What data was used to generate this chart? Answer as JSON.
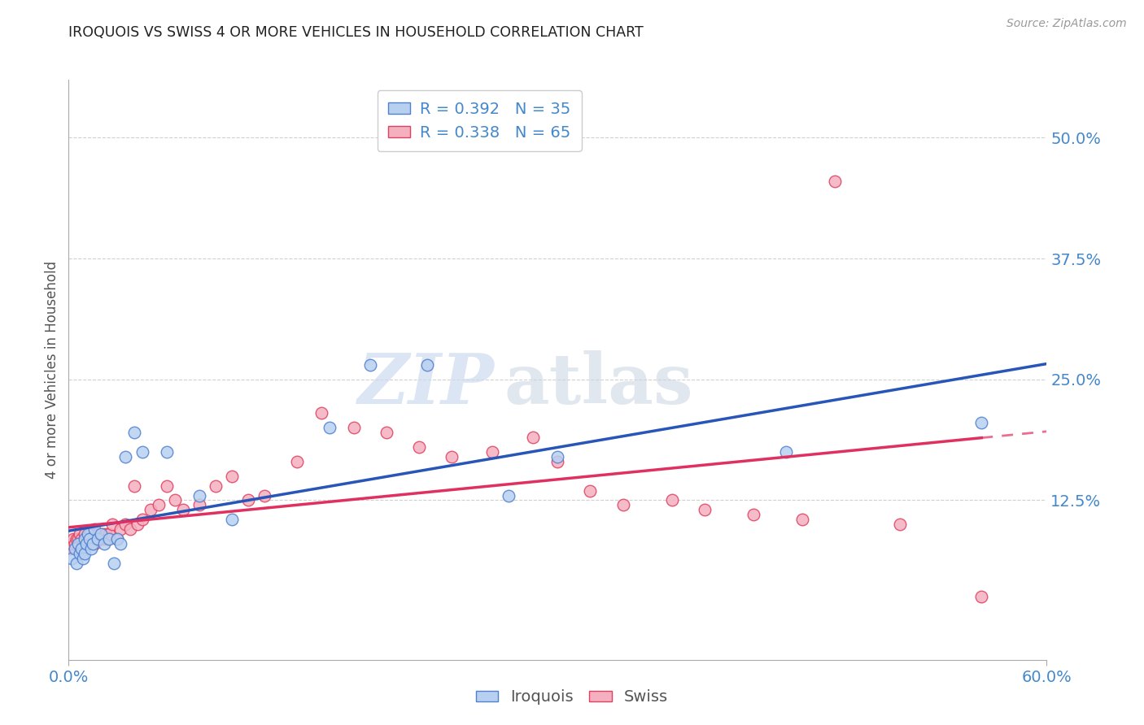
{
  "title": "IROQUOIS VS SWISS 4 OR MORE VEHICLES IN HOUSEHOLD CORRELATION CHART",
  "source": "Source: ZipAtlas.com",
  "ylabel": "4 or more Vehicles in Household",
  "xlim": [
    0.0,
    0.6
  ],
  "ylim": [
    -0.04,
    0.56
  ],
  "ytick_values": [
    0.125,
    0.25,
    0.375,
    0.5
  ],
  "ytick_labels": [
    "12.5%",
    "25.0%",
    "37.5%",
    "50.0%"
  ],
  "xtick_values": [
    0.0,
    0.6
  ],
  "xtick_labels": [
    "0.0%",
    "60.0%"
  ],
  "legend_label1": "R = 0.392   N = 35",
  "legend_label2": "R = 0.338   N = 65",
  "legend_bottom1": "Iroquois",
  "legend_bottom2": "Swiss",
  "color_iroquois_fill": "#b8d0f0",
  "color_iroquois_edge": "#5080d0",
  "color_swiss_fill": "#f5b0c0",
  "color_swiss_edge": "#e04060",
  "color_line_iroquois": "#2855b8",
  "color_line_swiss": "#e03060",
  "watermark_zip": "ZIP",
  "watermark_atlas": "atlas",
  "iroquois_x": [
    0.002,
    0.004,
    0.005,
    0.006,
    0.007,
    0.008,
    0.009,
    0.01,
    0.01,
    0.011,
    0.012,
    0.013,
    0.014,
    0.015,
    0.016,
    0.018,
    0.02,
    0.022,
    0.025,
    0.028,
    0.03,
    0.032,
    0.035,
    0.04,
    0.045,
    0.06,
    0.08,
    0.1,
    0.16,
    0.185,
    0.22,
    0.27,
    0.3,
    0.44,
    0.56
  ],
  "iroquois_y": [
    0.065,
    0.075,
    0.06,
    0.08,
    0.07,
    0.075,
    0.065,
    0.085,
    0.07,
    0.08,
    0.09,
    0.085,
    0.075,
    0.08,
    0.095,
    0.085,
    0.09,
    0.08,
    0.085,
    0.06,
    0.085,
    0.08,
    0.17,
    0.195,
    0.175,
    0.175,
    0.13,
    0.105,
    0.2,
    0.265,
    0.265,
    0.13,
    0.17,
    0.175,
    0.205
  ],
  "swiss_x": [
    0.001,
    0.002,
    0.003,
    0.004,
    0.005,
    0.006,
    0.007,
    0.007,
    0.008,
    0.008,
    0.009,
    0.01,
    0.01,
    0.011,
    0.012,
    0.013,
    0.014,
    0.015,
    0.016,
    0.016,
    0.017,
    0.018,
    0.019,
    0.02,
    0.021,
    0.022,
    0.023,
    0.024,
    0.025,
    0.027,
    0.03,
    0.032,
    0.035,
    0.038,
    0.04,
    0.042,
    0.045,
    0.05,
    0.055,
    0.06,
    0.065,
    0.07,
    0.08,
    0.09,
    0.1,
    0.11,
    0.12,
    0.14,
    0.155,
    0.175,
    0.195,
    0.215,
    0.235,
    0.26,
    0.285,
    0.3,
    0.32,
    0.34,
    0.37,
    0.39,
    0.42,
    0.45,
    0.47,
    0.51,
    0.56
  ],
  "swiss_y": [
    0.075,
    0.08,
    0.085,
    0.08,
    0.085,
    0.085,
    0.08,
    0.09,
    0.075,
    0.085,
    0.08,
    0.085,
    0.09,
    0.085,
    0.08,
    0.09,
    0.085,
    0.085,
    0.08,
    0.09,
    0.085,
    0.09,
    0.085,
    0.085,
    0.09,
    0.085,
    0.09,
    0.085,
    0.09,
    0.1,
    0.085,
    0.095,
    0.1,
    0.095,
    0.14,
    0.1,
    0.105,
    0.115,
    0.12,
    0.14,
    0.125,
    0.115,
    0.12,
    0.14,
    0.15,
    0.125,
    0.13,
    0.165,
    0.215,
    0.2,
    0.195,
    0.18,
    0.17,
    0.175,
    0.19,
    0.165,
    0.135,
    0.12,
    0.125,
    0.115,
    0.11,
    0.105,
    0.455,
    0.1,
    0.025
  ],
  "grid_color": "#d0d0d0",
  "bg_color": "#ffffff",
  "title_color": "#222222",
  "tick_color": "#4488cc"
}
